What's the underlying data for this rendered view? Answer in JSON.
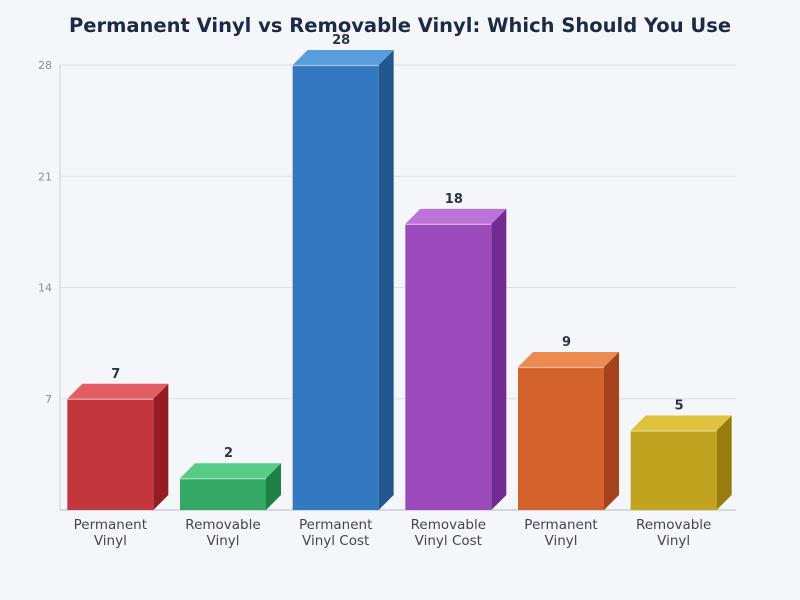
{
  "title": "Permanent Vinyl vs Removable Vinyl: Which Should You Use",
  "chart_data": {
    "type": "bar",
    "title": "Permanent Vinyl vs Removable Vinyl: Which Should You Use",
    "xlabel": "",
    "ylabel": "",
    "categories": [
      "Permanent Vinyl",
      "Removable Vinyl",
      "Permanent Vinyl Cost",
      "Removable Vinyl Cost",
      "Permanent Vinyl",
      "Removable Vinyl"
    ],
    "category_lines": [
      [
        "Permanent",
        "Vinyl"
      ],
      [
        "Removable",
        "Vinyl"
      ],
      [
        "Permanent",
        "Vinyl Cost"
      ],
      [
        "Removable",
        "Vinyl Cost"
      ],
      [
        "Permanent",
        "Vinyl"
      ],
      [
        "Removable",
        "Vinyl"
      ]
    ],
    "values": [
      7,
      2,
      28,
      18,
      9,
      5
    ],
    "ylim": [
      0,
      28
    ],
    "yticks": [
      7,
      14,
      21,
      28
    ],
    "grid": true,
    "legend": "none",
    "style": "3d",
    "colors": [
      {
        "front": "#c3363d",
        "top": "#e05e64",
        "side": "#941d24"
      },
      {
        "front": "#34a865",
        "top": "#57cc89",
        "side": "#1f7f45"
      },
      {
        "front": "#3478c0",
        "top": "#5a9ddd",
        "side": "#22578f"
      },
      {
        "front": "#9b4bbb",
        "top": "#bd72d8",
        "side": "#712c93"
      },
      {
        "front": "#d3622c",
        "top": "#ec8a52",
        "side": "#a5431c"
      },
      {
        "front": "#c2a31f",
        "top": "#dfc23d",
        "side": "#967d0e"
      }
    ]
  }
}
